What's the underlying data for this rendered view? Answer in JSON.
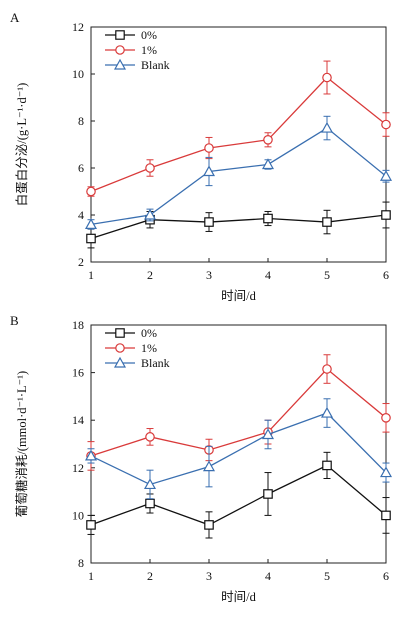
{
  "chart_data": [
    {
      "panel_label": "A",
      "type": "line",
      "xlabel": "时间/d",
      "ylabel": "白蛋白分泌/(g·L⁻¹·d⁻¹)",
      "x": [
        1,
        2,
        3,
        4,
        5,
        6
      ],
      "xlim": [
        1,
        6
      ],
      "ylim": [
        2,
        12
      ],
      "yticks": [
        2,
        4,
        6,
        8,
        10,
        12
      ],
      "grid": false,
      "legend_position": "top-left",
      "series": [
        {
          "name": "0%",
          "marker": "square",
          "color": "#111111",
          "values": [
            3.0,
            3.8,
            3.7,
            3.85,
            3.7,
            4.0
          ],
          "errors": [
            0.4,
            0.35,
            0.4,
            0.3,
            0.5,
            0.55
          ]
        },
        {
          "name": "1%",
          "marker": "circle",
          "color": "#d93a3a",
          "values": [
            5.0,
            6.0,
            6.85,
            7.2,
            9.85,
            7.85
          ],
          "errors": [
            0.2,
            0.35,
            0.45,
            0.3,
            0.7,
            0.5
          ]
        },
        {
          "name": "Blank",
          "marker": "triangle",
          "color": "#3a6fb0",
          "values": [
            3.6,
            4.0,
            5.85,
            6.15,
            7.7,
            5.65
          ],
          "errors": [
            0.2,
            0.25,
            0.6,
            0.2,
            0.5,
            0.25
          ]
        }
      ]
    },
    {
      "panel_label": "B",
      "type": "line",
      "xlabel": "时间/d",
      "ylabel": "葡萄糖消耗/(mmol·d⁻¹·L⁻¹)",
      "x": [
        1,
        2,
        3,
        4,
        5,
        6
      ],
      "xlim": [
        1,
        6
      ],
      "ylim": [
        8,
        18
      ],
      "yticks": [
        8,
        10,
        12,
        14,
        16,
        18
      ],
      "grid": false,
      "legend_position": "top-left",
      "series": [
        {
          "name": "0%",
          "marker": "square",
          "color": "#111111",
          "values": [
            9.6,
            10.5,
            9.6,
            10.9,
            12.1,
            10.0
          ],
          "errors": [
            0.4,
            0.4,
            0.55,
            0.9,
            0.55,
            0.75
          ]
        },
        {
          "name": "1%",
          "marker": "circle",
          "color": "#d93a3a",
          "values": [
            12.5,
            13.3,
            12.75,
            13.5,
            16.15,
            14.1
          ],
          "errors": [
            0.6,
            0.35,
            0.45,
            0.5,
            0.6,
            0.6
          ]
        },
        {
          "name": "Blank",
          "marker": "triangle",
          "color": "#3a6fb0",
          "values": [
            12.5,
            11.3,
            12.05,
            13.4,
            14.3,
            11.8
          ],
          "errors": [
            0.3,
            0.6,
            0.85,
            0.6,
            0.6,
            0.4
          ]
        }
      ]
    }
  ]
}
